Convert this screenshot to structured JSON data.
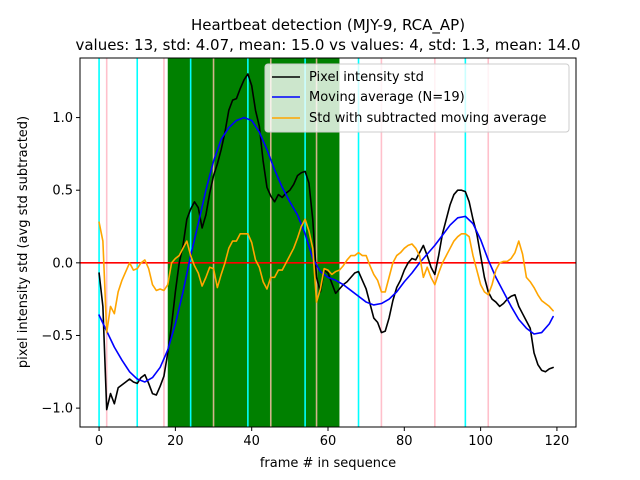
{
  "chart_data": {
    "type": "line",
    "title": "Heartbeat detection (MJY-9, RCA_AP)",
    "subtitle": "values: 13, std: 4.07, mean: 15.0 vs values: 4, std: 1.3, mean: 14.0",
    "xlabel": "frame # in sequence",
    "ylabel": "pixel intensity std (avg std subtracted)",
    "xlim": [
      -5,
      125
    ],
    "ylim": [
      -1.13,
      1.41
    ],
    "x_ticks": [
      0,
      20,
      40,
      60,
      80,
      100,
      120
    ],
    "y_ticks": [
      -1.0,
      -0.5,
      0.0,
      0.5,
      1.0
    ],
    "x_tick_labels": [
      "0",
      "20",
      "40",
      "60",
      "80",
      "100",
      "120"
    ],
    "y_tick_labels": [
      "−1.0",
      "−0.5",
      "0.0",
      "0.5",
      "1.0"
    ],
    "grid": false,
    "legend_position": "top-right",
    "colors": {
      "pixel_std": "#000000",
      "moving_average": "#0000ff",
      "subtracted": "#ffa500",
      "highlight_span": "#008000",
      "cyan_lines": "#00ffff",
      "pink_lines": "#ffc0cb",
      "tan_lines": "#d2b48c",
      "zero_line": "#ff0000"
    },
    "highlight_span": [
      18,
      63
    ],
    "cyan_lines": [
      0,
      10,
      24,
      39,
      54,
      68,
      96
    ],
    "pink_lines": [
      2,
      17,
      74,
      88,
      102
    ],
    "tan_lines": [
      30,
      45,
      57
    ],
    "zero_line": 0,
    "series": [
      {
        "name": "Pixel intensity std",
        "color": "#000000",
        "points": [
          [
            0,
            -0.07
          ],
          [
            1,
            -0.3
          ],
          [
            2,
            -1.01
          ],
          [
            3,
            -0.9
          ],
          [
            4,
            -0.97
          ],
          [
            5,
            -0.86
          ],
          [
            6,
            -0.84
          ],
          [
            7,
            -0.82
          ],
          [
            8,
            -0.8
          ],
          [
            9,
            -0.82
          ],
          [
            10,
            -0.83
          ],
          [
            11,
            -0.79
          ],
          [
            12,
            -0.77
          ],
          [
            13,
            -0.83
          ],
          [
            14,
            -0.9
          ],
          [
            15,
            -0.91
          ],
          [
            16,
            -0.85
          ],
          [
            17,
            -0.78
          ],
          [
            18,
            -0.62
          ],
          [
            19,
            -0.43
          ],
          [
            20,
            -0.2
          ],
          [
            21,
            0.0
          ],
          [
            22,
            0.12
          ],
          [
            23,
            0.3
          ],
          [
            24,
            0.37
          ],
          [
            25,
            0.42
          ],
          [
            26,
            0.38
          ],
          [
            27,
            0.24
          ],
          [
            28,
            0.33
          ],
          [
            29,
            0.48
          ],
          [
            30,
            0.6
          ],
          [
            31,
            0.68
          ],
          [
            32,
            0.78
          ],
          [
            33,
            0.9
          ],
          [
            34,
            1.05
          ],
          [
            35,
            1.12
          ],
          [
            36,
            1.13
          ],
          [
            37,
            1.2
          ],
          [
            38,
            1.26
          ],
          [
            39,
            1.3
          ],
          [
            40,
            1.22
          ],
          [
            41,
            1.05
          ],
          [
            42,
            0.94
          ],
          [
            43,
            0.7
          ],
          [
            44,
            0.52
          ],
          [
            45,
            0.46
          ],
          [
            46,
            0.42
          ],
          [
            47,
            0.47
          ],
          [
            48,
            0.45
          ],
          [
            49,
            0.48
          ],
          [
            50,
            0.5
          ],
          [
            51,
            0.54
          ],
          [
            52,
            0.6
          ],
          [
            53,
            0.62
          ],
          [
            54,
            0.63
          ],
          [
            55,
            0.55
          ],
          [
            56,
            0.3
          ],
          [
            57,
            -0.1
          ],
          [
            58,
            -0.2
          ],
          [
            59,
            -0.05
          ],
          [
            60,
            -0.07
          ],
          [
            61,
            -0.14
          ],
          [
            62,
            -0.21
          ],
          [
            63,
            -0.18
          ],
          [
            64,
            -0.15
          ],
          [
            65,
            -0.13
          ],
          [
            66,
            -0.1
          ],
          [
            67,
            -0.07
          ],
          [
            68,
            -0.06
          ],
          [
            69,
            -0.12
          ],
          [
            70,
            -0.18
          ],
          [
            71,
            -0.28
          ],
          [
            72,
            -0.38
          ],
          [
            73,
            -0.41
          ],
          [
            74,
            -0.48
          ],
          [
            75,
            -0.47
          ],
          [
            76,
            -0.38
          ],
          [
            77,
            -0.26
          ],
          [
            78,
            -0.17
          ],
          [
            79,
            -0.12
          ],
          [
            80,
            -0.05
          ],
          [
            81,
            0.0
          ],
          [
            82,
            0.03
          ],
          [
            83,
            0.02
          ],
          [
            84,
            0.07
          ],
          [
            85,
            0.12
          ],
          [
            86,
            0.05
          ],
          [
            87,
            -0.03
          ],
          [
            88,
            -0.08
          ],
          [
            89,
            0.05
          ],
          [
            90,
            0.2
          ],
          [
            91,
            0.3
          ],
          [
            92,
            0.4
          ],
          [
            93,
            0.47
          ],
          [
            94,
            0.5
          ],
          [
            95,
            0.5
          ],
          [
            96,
            0.49
          ],
          [
            97,
            0.42
          ],
          [
            98,
            0.3
          ],
          [
            99,
            0.2
          ],
          [
            100,
            0.05
          ],
          [
            101,
            -0.1
          ],
          [
            102,
            -0.2
          ],
          [
            103,
            -0.25
          ],
          [
            104,
            -0.27
          ],
          [
            105,
            -0.3
          ],
          [
            106,
            -0.28
          ],
          [
            107,
            -0.25
          ],
          [
            108,
            -0.23
          ],
          [
            109,
            -0.22
          ],
          [
            110,
            -0.3
          ],
          [
            111,
            -0.35
          ],
          [
            112,
            -0.4
          ],
          [
            113,
            -0.45
          ],
          [
            114,
            -0.62
          ],
          [
            115,
            -0.7
          ],
          [
            116,
            -0.74
          ],
          [
            117,
            -0.75
          ],
          [
            118,
            -0.73
          ],
          [
            119,
            -0.72
          ]
        ]
      },
      {
        "name": "Moving average (N=19)",
        "color": "#0000ff",
        "points": [
          [
            0,
            -0.36
          ],
          [
            2,
            -0.47
          ],
          [
            4,
            -0.58
          ],
          [
            6,
            -0.67
          ],
          [
            8,
            -0.75
          ],
          [
            10,
            -0.8
          ],
          [
            12,
            -0.82
          ],
          [
            14,
            -0.79
          ],
          [
            16,
            -0.72
          ],
          [
            18,
            -0.6
          ],
          [
            20,
            -0.42
          ],
          [
            22,
            -0.2
          ],
          [
            24,
            0.05
          ],
          [
            26,
            0.27
          ],
          [
            28,
            0.5
          ],
          [
            30,
            0.7
          ],
          [
            32,
            0.85
          ],
          [
            34,
            0.93
          ],
          [
            36,
            0.98
          ],
          [
            38,
            1.0
          ],
          [
            40,
            0.98
          ],
          [
            42,
            0.9
          ],
          [
            44,
            0.78
          ],
          [
            46,
            0.64
          ],
          [
            48,
            0.52
          ],
          [
            50,
            0.42
          ],
          [
            52,
            0.33
          ],
          [
            54,
            0.2
          ],
          [
            56,
            0.03
          ],
          [
            58,
            -0.06
          ],
          [
            60,
            -0.1
          ],
          [
            62,
            -0.12
          ],
          [
            64,
            -0.15
          ],
          [
            66,
            -0.19
          ],
          [
            68,
            -0.23
          ],
          [
            70,
            -0.27
          ],
          [
            72,
            -0.29
          ],
          [
            74,
            -0.28
          ],
          [
            76,
            -0.25
          ],
          [
            78,
            -0.2
          ],
          [
            80,
            -0.13
          ],
          [
            82,
            -0.07
          ],
          [
            84,
            0.0
          ],
          [
            86,
            0.06
          ],
          [
            88,
            0.12
          ],
          [
            90,
            0.19
          ],
          [
            92,
            0.26
          ],
          [
            94,
            0.31
          ],
          [
            96,
            0.32
          ],
          [
            98,
            0.27
          ],
          [
            100,
            0.16
          ],
          [
            102,
            0.02
          ],
          [
            104,
            -0.1
          ],
          [
            106,
            -0.2
          ],
          [
            108,
            -0.3
          ],
          [
            110,
            -0.39
          ],
          [
            112,
            -0.45
          ],
          [
            114,
            -0.49
          ],
          [
            116,
            -0.48
          ],
          [
            118,
            -0.42
          ],
          [
            119,
            -0.37
          ]
        ]
      },
      {
        "name": "Std with subtracted moving average",
        "color": "#ffa500",
        "points": [
          [
            0,
            0.28
          ],
          [
            1,
            0.15
          ],
          [
            2,
            -0.48
          ],
          [
            3,
            -0.3
          ],
          [
            4,
            -0.35
          ],
          [
            5,
            -0.2
          ],
          [
            6,
            -0.12
          ],
          [
            7,
            -0.06
          ],
          [
            8,
            0.0
          ],
          [
            9,
            -0.05
          ],
          [
            10,
            -0.04
          ],
          [
            11,
            0.0
          ],
          [
            12,
            0.02
          ],
          [
            13,
            -0.04
          ],
          [
            14,
            -0.15
          ],
          [
            15,
            -0.19
          ],
          [
            16,
            -0.18
          ],
          [
            17,
            -0.19
          ],
          [
            18,
            -0.15
          ],
          [
            19,
            0.0
          ],
          [
            20,
            0.03
          ],
          [
            21,
            0.05
          ],
          [
            22,
            0.1
          ],
          [
            23,
            0.15
          ],
          [
            24,
            0.05
          ],
          [
            25,
            -0.02
          ],
          [
            26,
            -0.07
          ],
          [
            27,
            -0.16
          ],
          [
            28,
            -0.1
          ],
          [
            29,
            -0.03
          ],
          [
            30,
            -0.04
          ],
          [
            31,
            -0.17
          ],
          [
            32,
            -0.08
          ],
          [
            33,
            0.0
          ],
          [
            34,
            0.1
          ],
          [
            35,
            0.15
          ],
          [
            36,
            0.15
          ],
          [
            37,
            0.2
          ],
          [
            38,
            0.2
          ],
          [
            39,
            0.2
          ],
          [
            40,
            0.14
          ],
          [
            41,
            0.02
          ],
          [
            42,
            -0.03
          ],
          [
            43,
            -0.13
          ],
          [
            44,
            -0.18
          ],
          [
            45,
            -0.1
          ],
          [
            46,
            -0.1
          ],
          [
            47,
            -0.05
          ],
          [
            48,
            -0.05
          ],
          [
            49,
            0.0
          ],
          [
            50,
            0.05
          ],
          [
            51,
            0.1
          ],
          [
            52,
            0.17
          ],
          [
            53,
            0.25
          ],
          [
            54,
            0.3
          ],
          [
            55,
            0.22
          ],
          [
            56,
            0.1
          ],
          [
            57,
            -0.27
          ],
          [
            58,
            -0.18
          ],
          [
            59,
            -0.04
          ],
          [
            60,
            -0.05
          ],
          [
            61,
            -0.08
          ],
          [
            62,
            -0.06
          ],
          [
            63,
            -0.05
          ],
          [
            64,
            -0.02
          ],
          [
            65,
            0.02
          ],
          [
            66,
            0.05
          ],
          [
            67,
            0.05
          ],
          [
            68,
            0.07
          ],
          [
            69,
            0.05
          ],
          [
            70,
            0.05
          ],
          [
            71,
            -0.02
          ],
          [
            72,
            -0.08
          ],
          [
            73,
            -0.12
          ],
          [
            74,
            -0.2
          ],
          [
            75,
            -0.2
          ],
          [
            76,
            -0.1
          ],
          [
            77,
            0.0
          ],
          [
            78,
            0.05
          ],
          [
            79,
            0.07
          ],
          [
            80,
            0.1
          ],
          [
            81,
            0.12
          ],
          [
            82,
            0.13
          ],
          [
            83,
            0.1
          ],
          [
            84,
            0.05
          ],
          [
            85,
            -0.1
          ],
          [
            86,
            -0.03
          ],
          [
            87,
            -0.1
          ],
          [
            88,
            -0.15
          ],
          [
            89,
            -0.07
          ],
          [
            90,
            0.0
          ],
          [
            91,
            0.05
          ],
          [
            92,
            0.1
          ],
          [
            93,
            0.15
          ],
          [
            94,
            0.18
          ],
          [
            95,
            0.2
          ],
          [
            96,
            0.2
          ],
          [
            97,
            0.18
          ],
          [
            98,
            0.05
          ],
          [
            99,
            -0.05
          ],
          [
            100,
            -0.15
          ],
          [
            101,
            -0.2
          ],
          [
            102,
            -0.22
          ],
          [
            103,
            -0.15
          ],
          [
            104,
            -0.05
          ],
          [
            105,
            0.0
          ],
          [
            106,
            0.01
          ],
          [
            107,
            0.01
          ],
          [
            108,
            0.03
          ],
          [
            109,
            0.07
          ],
          [
            110,
            0.15
          ],
          [
            111,
            0.06
          ],
          [
            112,
            -0.1
          ],
          [
            113,
            -0.13
          ],
          [
            114,
            -0.17
          ],
          [
            115,
            -0.22
          ],
          [
            116,
            -0.26
          ],
          [
            117,
            -0.28
          ],
          [
            118,
            -0.3
          ],
          [
            119,
            -0.33
          ]
        ]
      }
    ]
  }
}
